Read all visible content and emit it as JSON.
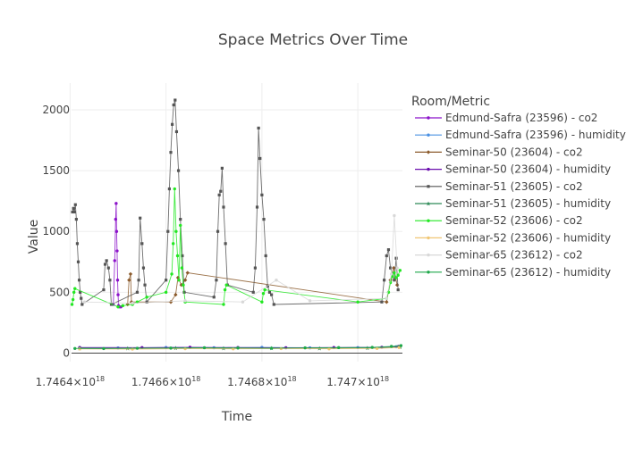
{
  "chart_data": {
    "type": "line",
    "title": "Space Metrics Over Time",
    "xlabel": "Time",
    "ylabel": "Value",
    "legend_title": "Room/Metric",
    "legend_position": "right",
    "grid": true,
    "xlim": [
      1746403000000000000,
      1747093000000000000
    ],
    "ylim": [
      -70,
      2220
    ],
    "x_ticks": [
      {
        "value": 1746400000000000000,
        "label": "1.7464×10",
        "exp": "18"
      },
      {
        "value": 1746600000000000000,
        "label": "1.7466×10",
        "exp": "18"
      },
      {
        "value": 1746800000000000000,
        "label": "1.7468×10",
        "exp": "18"
      },
      {
        "value": 1747000000000000000,
        "label": "1.747×10",
        "exp": "18"
      }
    ],
    "y_ticks": [
      0,
      500,
      1000,
      1500,
      2000
    ],
    "colors": {
      "edmund_co2": "#8b12c9",
      "edmund_humidity": "#4a90e2",
      "sem50_co2": "#8b5a2b",
      "sem50_humidity": "#6a0dad",
      "sem51_co2": "#555555",
      "sem51_humidity": "#2e8b57",
      "sem52_co2": "#22e822",
      "sem52_humidity": "#f0c674",
      "sem65_co2": "#d8d8d8",
      "sem65_humidity": "#1ea84a"
    },
    "series": [
      {
        "name": "Edmund-Safra (23596) - co2",
        "color": "#8b12c9",
        "marker": "circle",
        "x": [
          1746490000000000000,
          1746493000000000000,
          1746495000000000000,
          1746496000000000000,
          1746497000000000000,
          1746498000000000000,
          1746499000000000000,
          1746500000000000000,
          1746501000000000000,
          1746503000000000000,
          1746506000000000000
        ],
        "y": [
          400,
          760,
          1100,
          1230,
          1000,
          840,
          600,
          480,
          390,
          380,
          380
        ]
      },
      {
        "name": "Edmund-Safra (23596) - humidity",
        "color": "#4a90e2",
        "marker": "circle",
        "x": [
          1746420000000000000,
          1746500000000000000,
          1746600000000000000,
          1746700000000000000,
          1746800000000000000,
          1746900000000000000,
          1747000000000000000,
          1747080000000000000
        ],
        "y": [
          44,
          42,
          46,
          44,
          47,
          43,
          45,
          52
        ]
      },
      {
        "name": "Seminar-50 (23604) - co2",
        "color": "#8b5a2b",
        "marker": "diamond",
        "x": [
          1746520000000000000,
          1746523000000000000,
          1746526000000000000,
          1746528000000000000,
          1746610000000000000,
          1746620000000000000,
          1746625000000000000,
          1746632000000000000,
          1746640000000000000,
          1746645000000000000,
          1747060000000000000,
          1747068000000000000,
          1747075000000000000,
          1747082000000000000
        ],
        "y": [
          400,
          600,
          650,
          420,
          420,
          480,
          620,
          560,
          600,
          660,
          420,
          600,
          700,
          560
        ]
      },
      {
        "name": "Seminar-50 (23604) - humidity",
        "color": "#6a0dad",
        "marker": "circle",
        "x": [
          1746420000000000000,
          1746550000000000000,
          1746650000000000000,
          1746750000000000000,
          1746850000000000000,
          1746950000000000000,
          1747050000000000000,
          1747085000000000000
        ],
        "y": [
          46,
          45,
          48,
          46,
          44,
          46,
          48,
          55
        ]
      },
      {
        "name": "Seminar-51 (23605) - co2",
        "color": "#555555",
        "marker": "square",
        "x": [
          1746405000000000000,
          1746407000000000000,
          1746409000000000000,
          1746411000000000000,
          1746413000000000000,
          1746415000000000000,
          1746417000000000000,
          1746419000000000000,
          1746421000000000000,
          1746423000000000000,
          1746425000000000000,
          1746470000000000000,
          1746473000000000000,
          1746476000000000000,
          1746480000000000000,
          1746483000000000000,
          1746486000000000000,
          1746540000000000000,
          1746543000000000000,
          1746546000000000000,
          1746550000000000000,
          1746553000000000000,
          1746556000000000000,
          1746560000000000000,
          1746600000000000000,
          1746604000000000000,
          1746607000000000000,
          1746610000000000000,
          1746613000000000000,
          1746616000000000000,
          1746619000000000000,
          1746622000000000000,
          1746626000000000000,
          1746630000000000000,
          1746634000000000000,
          1746638000000000000,
          1746700000000000000,
          1746705000000000000,
          1746708000000000000,
          1746711000000000000,
          1746714000000000000,
          1746717000000000000,
          1746720000000000000,
          1746724000000000000,
          1746728000000000000,
          1746782000000000000,
          1746786000000000000,
          1746790000000000000,
          1746793000000000000,
          1746796000000000000,
          1746800000000000000,
          1746804000000000000,
          1746808000000000000,
          1746812000000000000,
          1746816000000000000,
          1746820000000000000,
          1746825000000000000,
          1747050000000000000,
          1747055000000000000,
          1747060000000000000,
          1747064000000000000,
          1747068000000000000,
          1747072000000000000,
          1747076000000000000,
          1747080000000000000,
          1747084000000000000
        ],
        "y": [
          1160,
          1190,
          1160,
          1220,
          1100,
          900,
          750,
          600,
          500,
          450,
          400,
          520,
          730,
          760,
          700,
          600,
          400,
          500,
          600,
          1110,
          900,
          700,
          560,
          420,
          600,
          1000,
          1350,
          1650,
          1880,
          2040,
          2080,
          1820,
          1500,
          1100,
          800,
          500,
          460,
          600,
          1000,
          1300,
          1330,
          1520,
          1200,
          900,
          560,
          500,
          700,
          1200,
          1850,
          1600,
          1300,
          1100,
          800,
          550,
          500,
          480,
          400,
          420,
          600,
          800,
          850,
          700,
          650,
          600,
          780,
          520
        ]
      },
      {
        "name": "Seminar-51 (23605) - humidity",
        "color": "#2e8b57",
        "marker": "star",
        "x": [
          1746420000000000000,
          1746520000000000000,
          1746620000000000000,
          1746720000000000000,
          1746820000000000000,
          1746920000000000000,
          1747020000000000000,
          1747088000000000000
        ],
        "y": [
          40,
          39,
          42,
          40,
          41,
          39,
          42,
          50
        ]
      },
      {
        "name": "Seminar-52 (23606) - co2",
        "color": "#22e822",
        "marker": "circle",
        "x": [
          1746404000000000000,
          1746406000000000000,
          1746408000000000000,
          1746410000000000000,
          1746500000000000000,
          1746510000000000000,
          1746530000000000000,
          1746540000000000000,
          1746560000000000000,
          1746600000000000000,
          1746612000000000000,
          1746615000000000000,
          1746618000000000000,
          1746621000000000000,
          1746624000000000000,
          1746627000000000000,
          1746630000000000000,
          1746633000000000000,
          1746636000000000000,
          1746640000000000000,
          1746720000000000000,
          1746723000000000000,
          1746726000000000000,
          1746800000000000000,
          1746803000000000000,
          1746806000000000000,
          1747000000000000000,
          1747060000000000000,
          1747064000000000000,
          1747068000000000000,
          1747072000000000000,
          1747076000000000000,
          1747080000000000000,
          1747084000000000000,
          1747088000000000000
        ],
        "y": [
          400,
          440,
          500,
          530,
          380,
          390,
          400,
          420,
          460,
          500,
          650,
          900,
          1350,
          1000,
          800,
          600,
          1050,
          700,
          560,
          420,
          400,
          520,
          560,
          420,
          490,
          520,
          420,
          450,
          500,
          580,
          630,
          660,
          620,
          640,
          680
        ]
      },
      {
        "name": "Seminar-52 (23606) - humidity",
        "color": "#f0c674",
        "marker": "circle",
        "x": [
          1746420000000000000,
          1746530000000000000,
          1746640000000000000,
          1746740000000000000,
          1746840000000000000,
          1746940000000000000,
          1747040000000000000,
          1747086000000000000
        ],
        "y": [
          34,
          33,
          36,
          35,
          37,
          35,
          38,
          46
        ]
      },
      {
        "name": "Seminar-65 (23612) - co2",
        "color": "#d8d8d8",
        "marker": "circle",
        "x": [
          1746430000000000000,
          1746530000000000000,
          1746640000000000000,
          1746760000000000000,
          1746830000000000000,
          1746900000000000000,
          1747060000000000000,
          1747070000000000000,
          1747076000000000000,
          1747082000000000000
        ],
        "y": [
          420,
          410,
          430,
          420,
          600,
          430,
          450,
          650,
          1130,
          700
        ]
      },
      {
        "name": "Seminar-65 (23612) - humidity",
        "color": "#1ea84a",
        "marker": "circle",
        "x": [
          1746410000000000000,
          1746470000000000000,
          1746540000000000000,
          1746610000000000000,
          1746680000000000000,
          1746750000000000000,
          1746820000000000000,
          1746890000000000000,
          1746960000000000000,
          1747030000000000000,
          1747070000000000000,
          1747090000000000000
        ],
        "y": [
          38,
          37,
          40,
          41,
          44,
          42,
          40,
          43,
          45,
          47,
          55,
          62
        ]
      }
    ]
  }
}
